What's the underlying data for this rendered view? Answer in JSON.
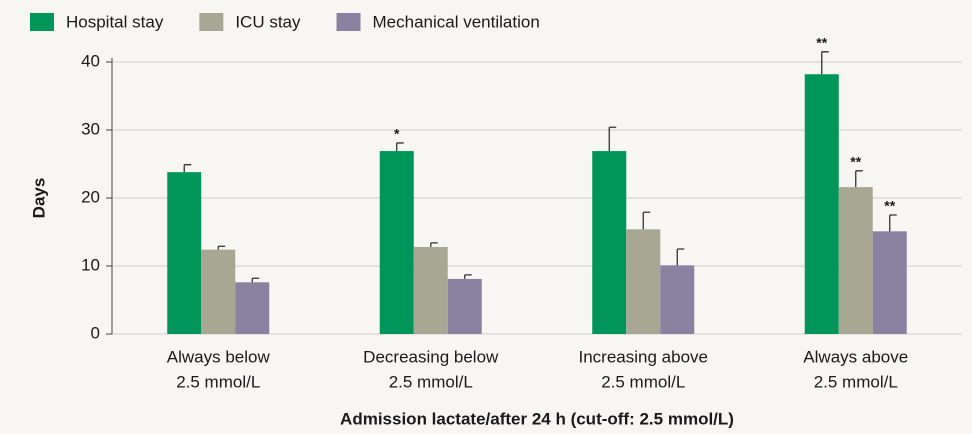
{
  "chart_data": {
    "type": "bar",
    "y_label": "Days",
    "x_label": "Admission lactate/after 24 h (cut-off: 2.5 mmol/L)",
    "categories": [
      [
        "Always below",
        "2.5 mmol/L"
      ],
      [
        "Decreasing below",
        "2.5 mmol/L"
      ],
      [
        "Increasing above",
        "2.5 mmol/L"
      ],
      [
        "Always above",
        "2.5 mmol/L"
      ]
    ],
    "series": [
      {
        "name": "Hospital stay",
        "color": "#00965a",
        "values": [
          23.8,
          26.9,
          26.9,
          38.2
        ],
        "errors": [
          1.1,
          1.2,
          3.5,
          3.3
        ],
        "significance": [
          null,
          "*",
          null,
          "**"
        ]
      },
      {
        "name": "ICU stay",
        "color": "#a8a794",
        "values": [
          12.4,
          12.8,
          15.4,
          21.6
        ],
        "errors": [
          0.5,
          0.6,
          2.5,
          2.4
        ],
        "significance": [
          null,
          null,
          null,
          "**"
        ]
      },
      {
        "name": "Mechanical ventilation",
        "color": "#8a82a1",
        "values": [
          7.6,
          8.1,
          10.1,
          15.1
        ],
        "errors": [
          0.6,
          0.6,
          2.4,
          2.4
        ],
        "significance": [
          null,
          null,
          null,
          "**"
        ]
      }
    ],
    "ylim": [
      0,
      40
    ],
    "yticks": [
      0,
      10,
      20,
      30,
      40
    ],
    "grid": true,
    "legend": "top"
  }
}
